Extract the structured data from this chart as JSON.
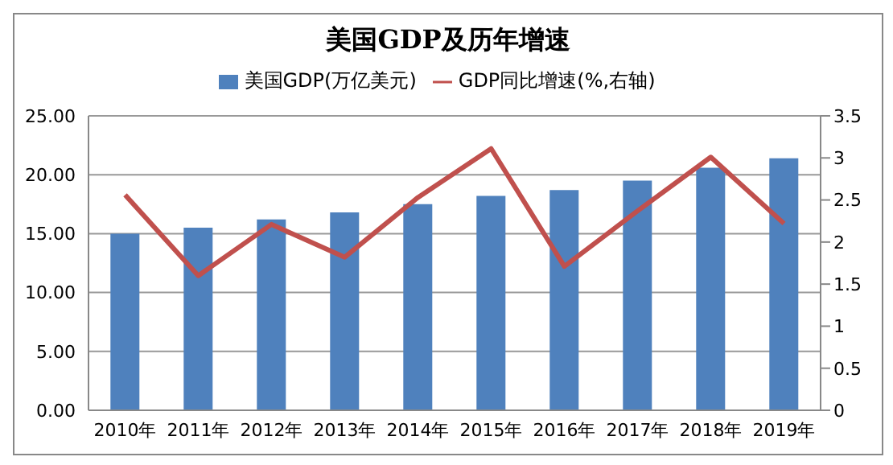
{
  "chart_data": {
    "type": "bar",
    "title": "美国GDP及历年增速",
    "categories": [
      "2010年",
      "2011年",
      "2012年",
      "2013年",
      "2014年",
      "2015年",
      "2016年",
      "2017年",
      "2018年",
      "2019年"
    ],
    "series": [
      {
        "name": "美国GDP(万亿美元)",
        "color": "#4f81bd",
        "values": [
          15.0,
          15.5,
          16.2,
          16.8,
          17.5,
          18.2,
          18.7,
          19.5,
          20.6,
          21.4
        ]
      },
      {
        "name": "GDP同比增速(%,右轴)",
        "type": "line",
        "axis": "y2",
        "color": "#c0504d",
        "values": [
          2.56,
          1.6,
          2.21,
          1.82,
          2.53,
          3.11,
          1.71,
          2.37,
          3.01,
          2.22
        ]
      }
    ],
    "ylim": [
      0,
      25
    ],
    "yticks": [
      {
        "value": 0,
        "label": "0.00"
      },
      {
        "value": 5,
        "label": "5.00"
      },
      {
        "value": 10,
        "label": "10.00"
      },
      {
        "value": 15,
        "label": "15.00"
      },
      {
        "value": 20,
        "label": "20.00"
      },
      {
        "value": 25,
        "label": "25.00"
      }
    ],
    "y2lim": [
      0,
      3.5
    ],
    "y2ticks": [
      0,
      0.5,
      1,
      1.5,
      2,
      2.5,
      3,
      3.5
    ],
    "grid": "y",
    "legend": "top",
    "marker": "none"
  }
}
